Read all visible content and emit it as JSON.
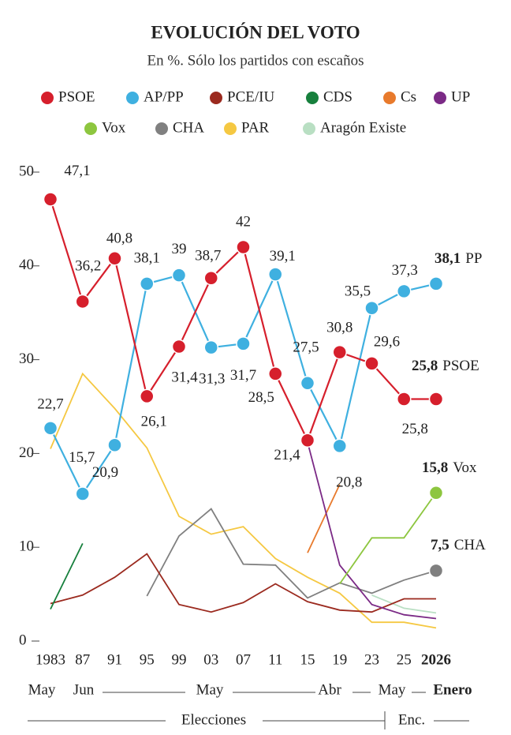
{
  "chart_data": {
    "type": "line",
    "title": "EVOLUCIÓN DEL VOTO",
    "subtitle": "En %. Sólo los partidos con escaños",
    "categories": [
      "1983",
      "87",
      "91",
      "95",
      "99",
      "03",
      "07",
      "11",
      "15",
      "19",
      "23",
      "25",
      "2026"
    ],
    "ylim": [
      0,
      50
    ],
    "yticks": [
      0,
      10,
      20,
      30,
      40,
      50
    ],
    "period_labels": [
      "May",
      "Jun",
      "May",
      "Abr",
      "May",
      "Enero"
    ],
    "group_labels": [
      "Elecciones",
      "Enc."
    ],
    "series": [
      {
        "name": "PSOE",
        "color": "#d61f2c",
        "markers": "all",
        "end_label": "PSOE",
        "values": [
          47.1,
          36.2,
          40.8,
          26.1,
          31.4,
          38.7,
          42,
          28.5,
          21.4,
          30.8,
          29.6,
          25.8,
          25.8
        ],
        "value_labels": [
          "47,1",
          "36,2",
          "40,8",
          "26,1",
          "31,4",
          "38,7",
          "42",
          "28,5",
          "21,4",
          "30,8",
          "29,6",
          "25,8",
          "25,8"
        ]
      },
      {
        "name": "AP/PP",
        "color": "#3fb0e0",
        "markers": "all",
        "end_label": "PP",
        "values": [
          22.7,
          15.7,
          20.9,
          38.1,
          39,
          31.3,
          31.7,
          39.1,
          27.5,
          20.8,
          35.5,
          37.3,
          38.1
        ],
        "value_labels": [
          "22,7",
          "15,7",
          "20,9",
          "38,1",
          "39",
          "31,3",
          "31,7",
          "39,1",
          "27,5",
          "20,8",
          "35,5",
          "37,3",
          "38,1"
        ]
      },
      {
        "name": "PCE/IU",
        "color": "#9b2a1f",
        "markers": "none",
        "values": [
          4.0,
          4.9,
          6.8,
          9.3,
          3.9,
          3.1,
          4.1,
          6.1,
          4.2,
          3.3,
          3.1,
          4.5,
          4.5
        ]
      },
      {
        "name": "CDS",
        "color": "#17803d",
        "markers": "none",
        "values": [
          3.4,
          10.4,
          null,
          null,
          null,
          null,
          null,
          null,
          null,
          null,
          null,
          null,
          null
        ]
      },
      {
        "name": "Cs",
        "color": "#e87a2c",
        "markers": "none",
        "values": [
          null,
          null,
          null,
          null,
          null,
          null,
          null,
          null,
          9.4,
          16.7,
          null,
          null,
          null
        ]
      },
      {
        "name": "UP",
        "color": "#7b2a86",
        "markers": "none",
        "values": [
          null,
          null,
          null,
          null,
          null,
          null,
          null,
          null,
          21.2,
          8.1,
          3.9,
          2.8,
          2.4
        ]
      },
      {
        "name": "Vox",
        "color": "#8dc63f",
        "markers": "last",
        "end_label": "Vox",
        "values": [
          null,
          null,
          null,
          null,
          null,
          null,
          null,
          null,
          null,
          6.1,
          11.0,
          11.0,
          15.8
        ],
        "value_labels": [
          null,
          null,
          null,
          null,
          null,
          null,
          null,
          null,
          null,
          null,
          null,
          null,
          "15,8"
        ]
      },
      {
        "name": "CHA",
        "color": "#808080",
        "markers": "last",
        "end_label": "CHA",
        "values": [
          null,
          null,
          null,
          4.8,
          11.2,
          14.1,
          8.2,
          8.1,
          4.6,
          6.2,
          5.1,
          6.5,
          7.5
        ],
        "value_labels": [
          null,
          null,
          null,
          null,
          null,
          null,
          null,
          null,
          null,
          null,
          null,
          null,
          "7,5"
        ]
      },
      {
        "name": "PAR",
        "color": "#f5c842",
        "markers": "none",
        "values": [
          20.5,
          28.5,
          24.8,
          20.6,
          13.3,
          11.4,
          12.2,
          8.8,
          6.8,
          5.1,
          2.0,
          2.0,
          1.4
        ]
      },
      {
        "name": "Aragón Existe",
        "color": "#b9dfc3",
        "markers": "none",
        "values": [
          null,
          null,
          null,
          null,
          null,
          null,
          null,
          null,
          null,
          null,
          4.9,
          3.5,
          3.0
        ]
      }
    ]
  }
}
